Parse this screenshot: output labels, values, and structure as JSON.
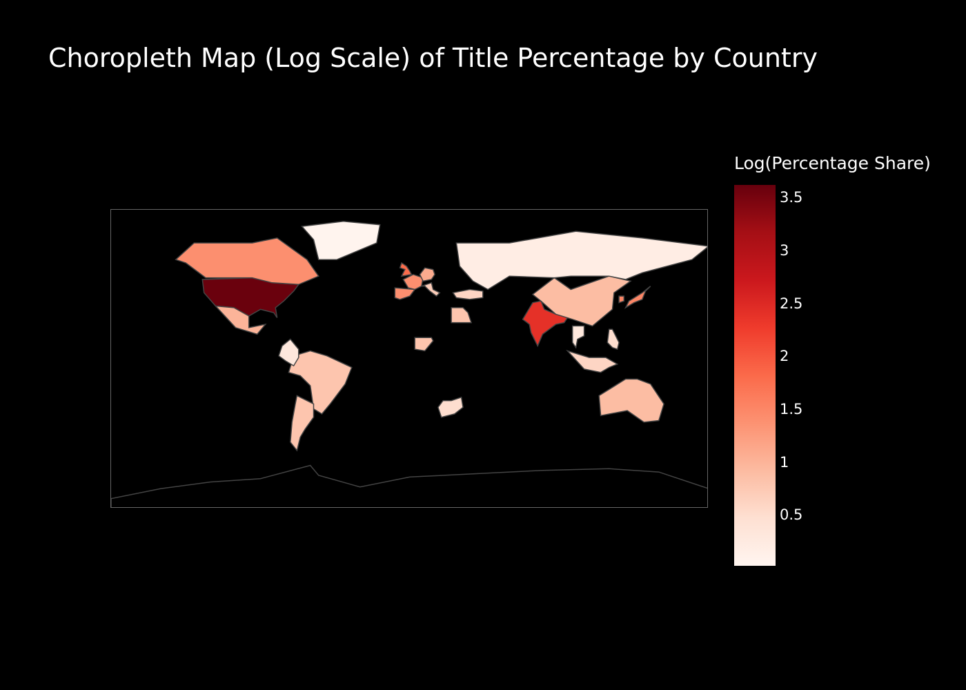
{
  "title": "Choropleth Map (Log Scale) of Title Percentage by Country",
  "colorbar": {
    "title": "Log(Percentage Share)",
    "ticks": [
      "0.5",
      "1",
      "1.5",
      "2",
      "2.5",
      "3",
      "3.5"
    ],
    "tick_values": [
      0.5,
      1,
      1.5,
      2,
      2.5,
      3,
      3.5
    ],
    "range": [
      0.02,
      3.62
    ],
    "colorscale": [
      "#fff5f0",
      "#fee0d2",
      "#fcbba1",
      "#fc9272",
      "#fb6a4a",
      "#ef3b2c",
      "#cb181d",
      "#a50f15",
      "#67000d"
    ]
  },
  "chart_data": {
    "type": "choropleth",
    "title": "Choropleth Map (Log Scale) of Title Percentage by Country",
    "colorbar_title": "Log(Percentage Share)",
    "projection": "equirectangular",
    "regions": [
      {
        "name": "United States",
        "value": 3.6
      },
      {
        "name": "India",
        "value": 2.4
      },
      {
        "name": "United Kingdom",
        "value": 1.8
      },
      {
        "name": "Canada",
        "value": 1.4
      },
      {
        "name": "France",
        "value": 1.4
      },
      {
        "name": "Spain",
        "value": 1.4
      },
      {
        "name": "Japan",
        "value": 1.5
      },
      {
        "name": "South Korea",
        "value": 1.5
      },
      {
        "name": "Germany",
        "value": 1.1
      },
      {
        "name": "Mexico",
        "value": 1.0
      },
      {
        "name": "China",
        "value": 0.9
      },
      {
        "name": "Australia",
        "value": 0.9
      },
      {
        "name": "Brazil",
        "value": 0.8
      },
      {
        "name": "Argentina",
        "value": 0.8
      },
      {
        "name": "Egypt",
        "value": 0.8
      },
      {
        "name": "Nigeria",
        "value": 0.8
      },
      {
        "name": "Indonesia",
        "value": 0.6
      },
      {
        "name": "Turkey",
        "value": 0.6
      },
      {
        "name": "South Africa",
        "value": 0.5
      },
      {
        "name": "Philippines",
        "value": 0.5
      },
      {
        "name": "Italy",
        "value": 0.7
      },
      {
        "name": "Colombia",
        "value": 0.3
      },
      {
        "name": "Thailand",
        "value": 0.3
      },
      {
        "name": "Russia",
        "value": 0.2
      },
      {
        "name": "Greenland",
        "value": 0.05
      }
    ]
  }
}
